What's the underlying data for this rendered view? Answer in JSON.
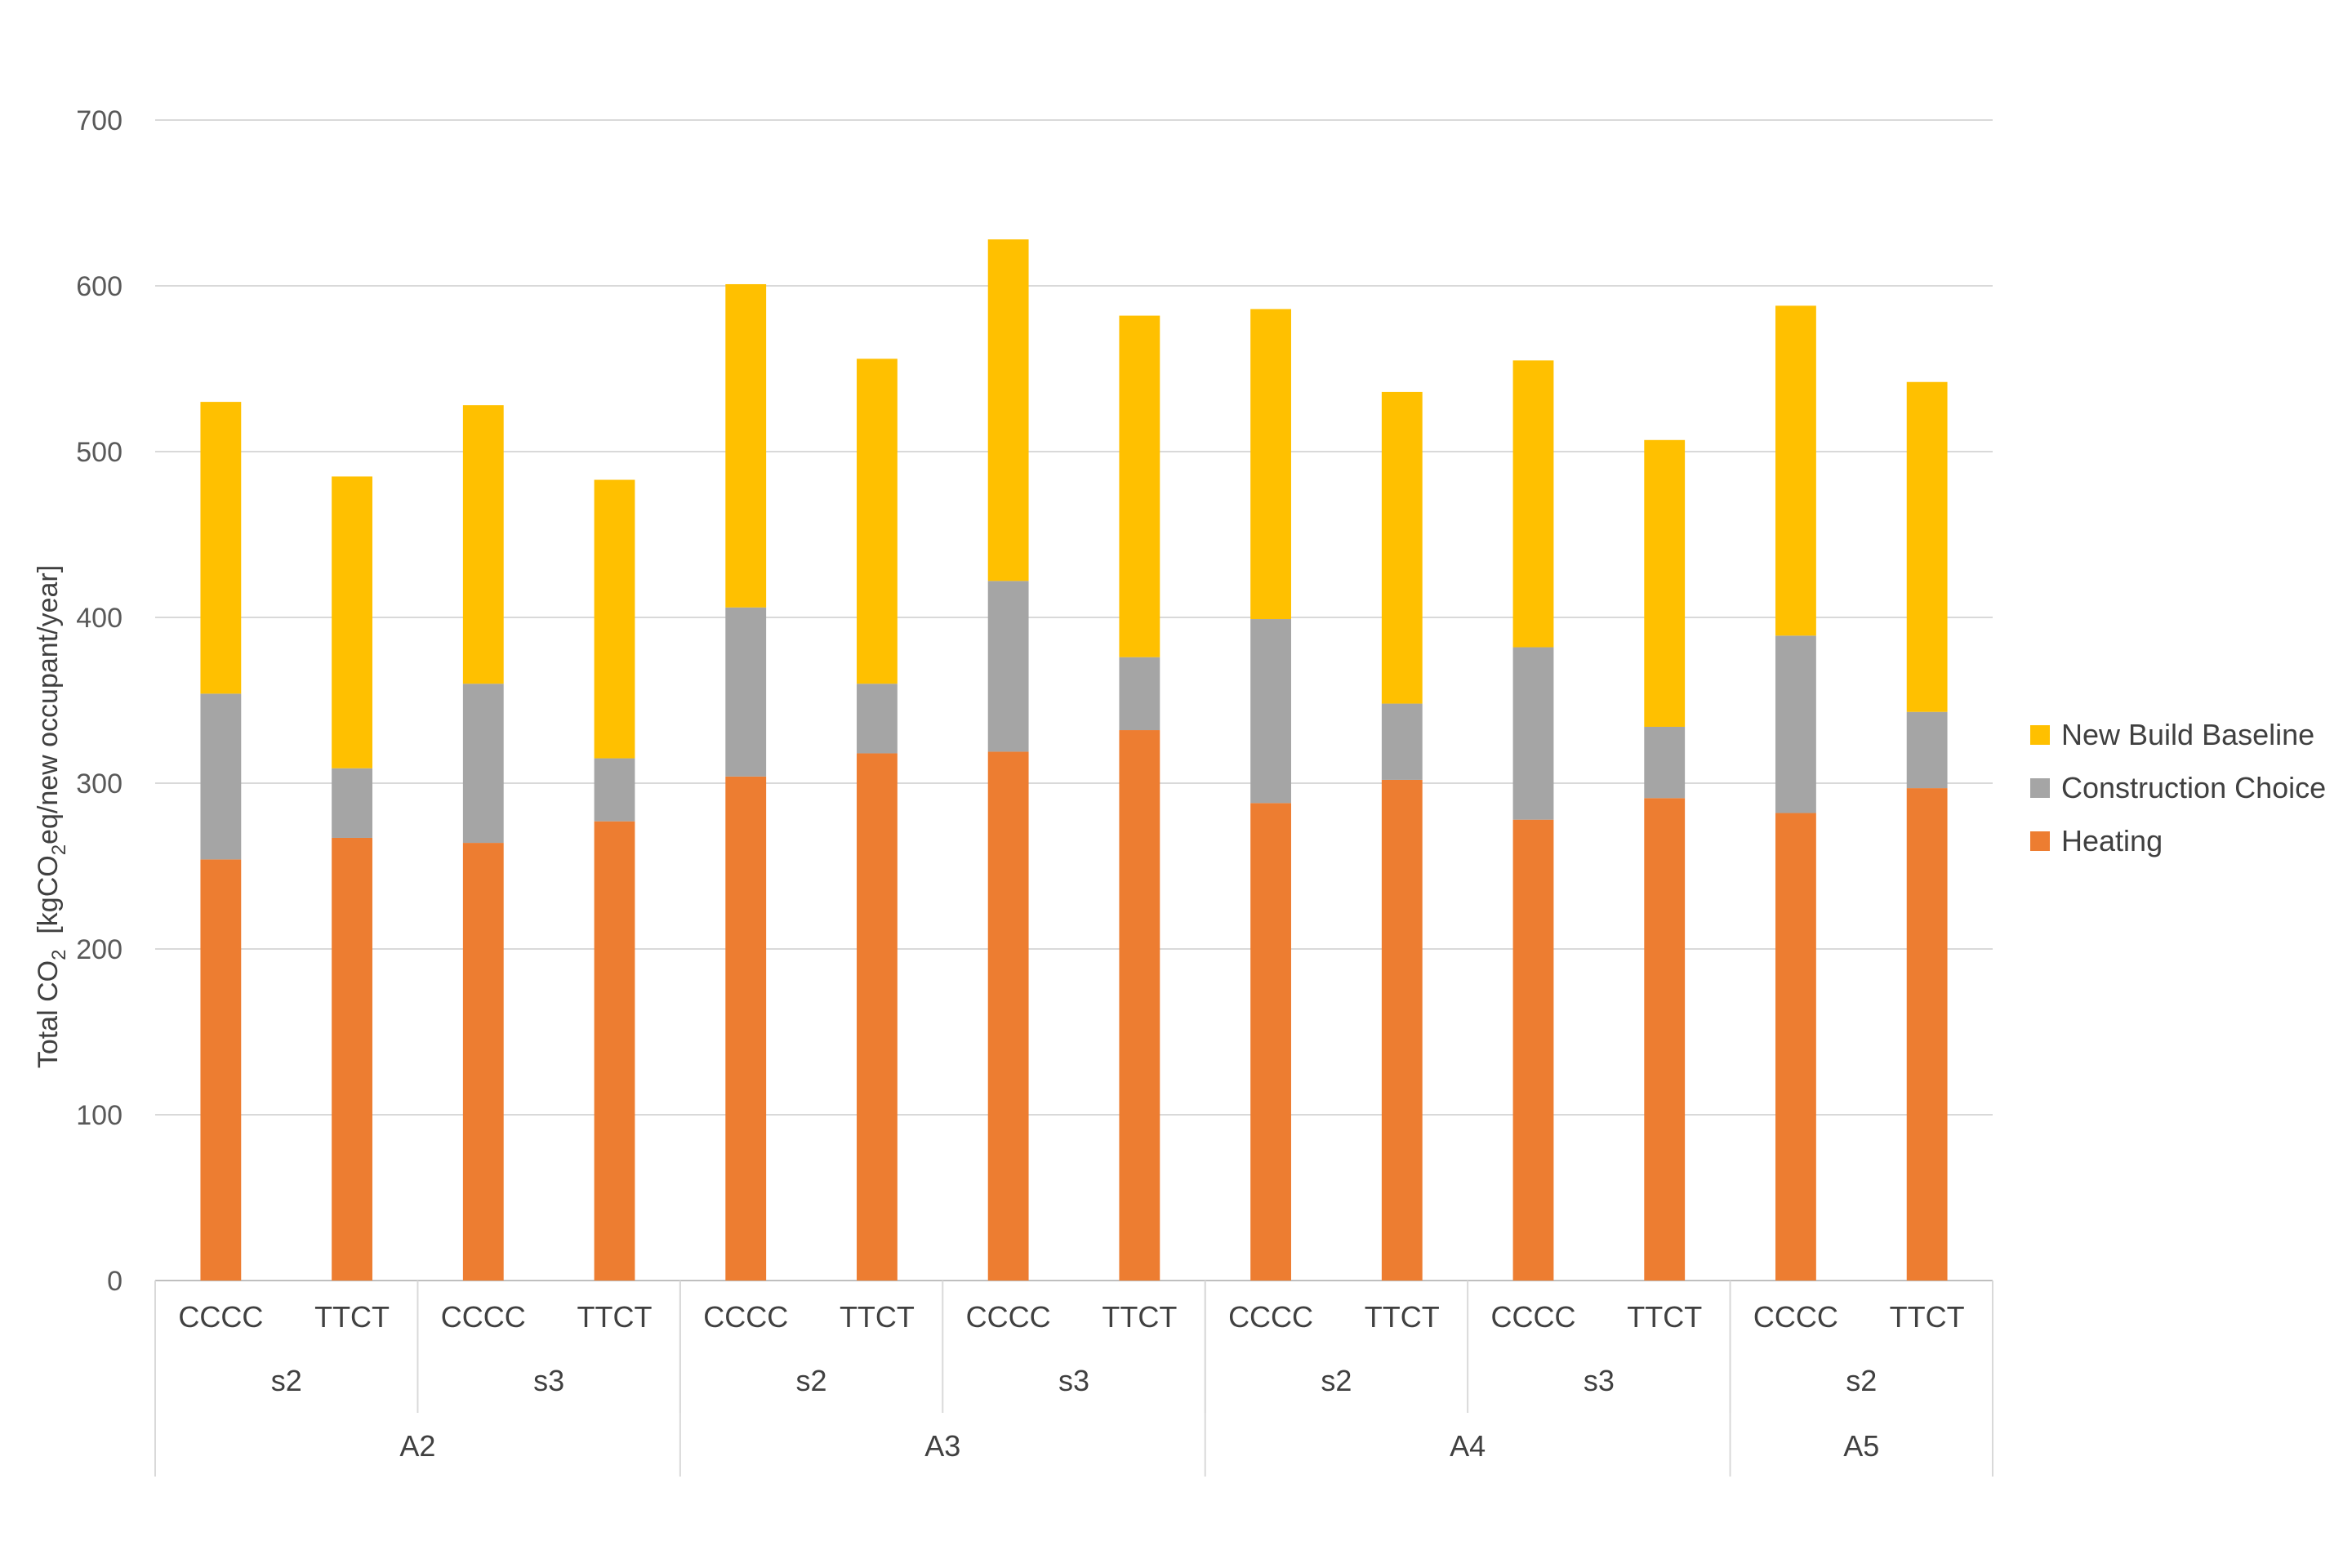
{
  "chart_data": {
    "type": "bar",
    "stacked": true,
    "title": "",
    "ylabel": {
      "prefix": "Total CO",
      "sub": "2",
      "mid": "  [kgCO",
      "sub2": "2",
      "suffix": "eq/new occupant/year]"
    },
    "ylim": [
      0,
      700
    ],
    "yticks": [
      0,
      100,
      200,
      300,
      400,
      500,
      600,
      700
    ],
    "grid": true,
    "legend_position": "right",
    "categories": [
      {
        "scenario": "CCCC",
        "level": "s2",
        "group": "A2"
      },
      {
        "scenario": "TTCT",
        "level": "s2",
        "group": "A2"
      },
      {
        "scenario": "CCCC",
        "level": "s3",
        "group": "A2"
      },
      {
        "scenario": "TTCT",
        "level": "s3",
        "group": "A2"
      },
      {
        "scenario": "CCCC",
        "level": "s2",
        "group": "A3"
      },
      {
        "scenario": "TTCT",
        "level": "s2",
        "group": "A3"
      },
      {
        "scenario": "CCCC",
        "level": "s3",
        "group": "A3"
      },
      {
        "scenario": "TTCT",
        "level": "s3",
        "group": "A3"
      },
      {
        "scenario": "CCCC",
        "level": "s2",
        "group": "A4"
      },
      {
        "scenario": "TTCT",
        "level": "s2",
        "group": "A4"
      },
      {
        "scenario": "CCCC",
        "level": "s3",
        "group": "A4"
      },
      {
        "scenario": "TTCT",
        "level": "s3",
        "group": "A4"
      },
      {
        "scenario": "CCCC",
        "level": "s2",
        "group": "A5"
      },
      {
        "scenario": "TTCT",
        "level": "s2",
        "group": "A5"
      }
    ],
    "level_groups": [
      {
        "label": "s2",
        "count": 2
      },
      {
        "label": "s3",
        "count": 2
      },
      {
        "label": "s2",
        "count": 2
      },
      {
        "label": "s3",
        "count": 2
      },
      {
        "label": "s2",
        "count": 2
      },
      {
        "label": "s3",
        "count": 2
      },
      {
        "label": "s2",
        "count": 2
      }
    ],
    "top_groups": [
      {
        "label": "A2",
        "count": 4
      },
      {
        "label": "A3",
        "count": 4
      },
      {
        "label": "A4",
        "count": 4
      },
      {
        "label": "A5",
        "count": 2
      }
    ],
    "series": [
      {
        "name": "Heating",
        "color": "#ED7D31",
        "values": [
          254,
          267,
          264,
          277,
          304,
          318,
          319,
          332,
          288,
          302,
          278,
          291,
          282,
          297
        ]
      },
      {
        "name": "Construction Choice",
        "color": "#A5A5A5",
        "values": [
          100,
          42,
          96,
          38,
          102,
          42,
          103,
          44,
          111,
          46,
          104,
          43,
          107,
          46
        ]
      },
      {
        "name": "New Build Baseline",
        "color": "#FFC000",
        "values": [
          176,
          176,
          168,
          168,
          195,
          196,
          206,
          206,
          187,
          188,
          173,
          173,
          199,
          199
        ]
      }
    ],
    "legend_order": [
      "New Build Baseline",
      "Construction Choice",
      "Heating"
    ]
  }
}
